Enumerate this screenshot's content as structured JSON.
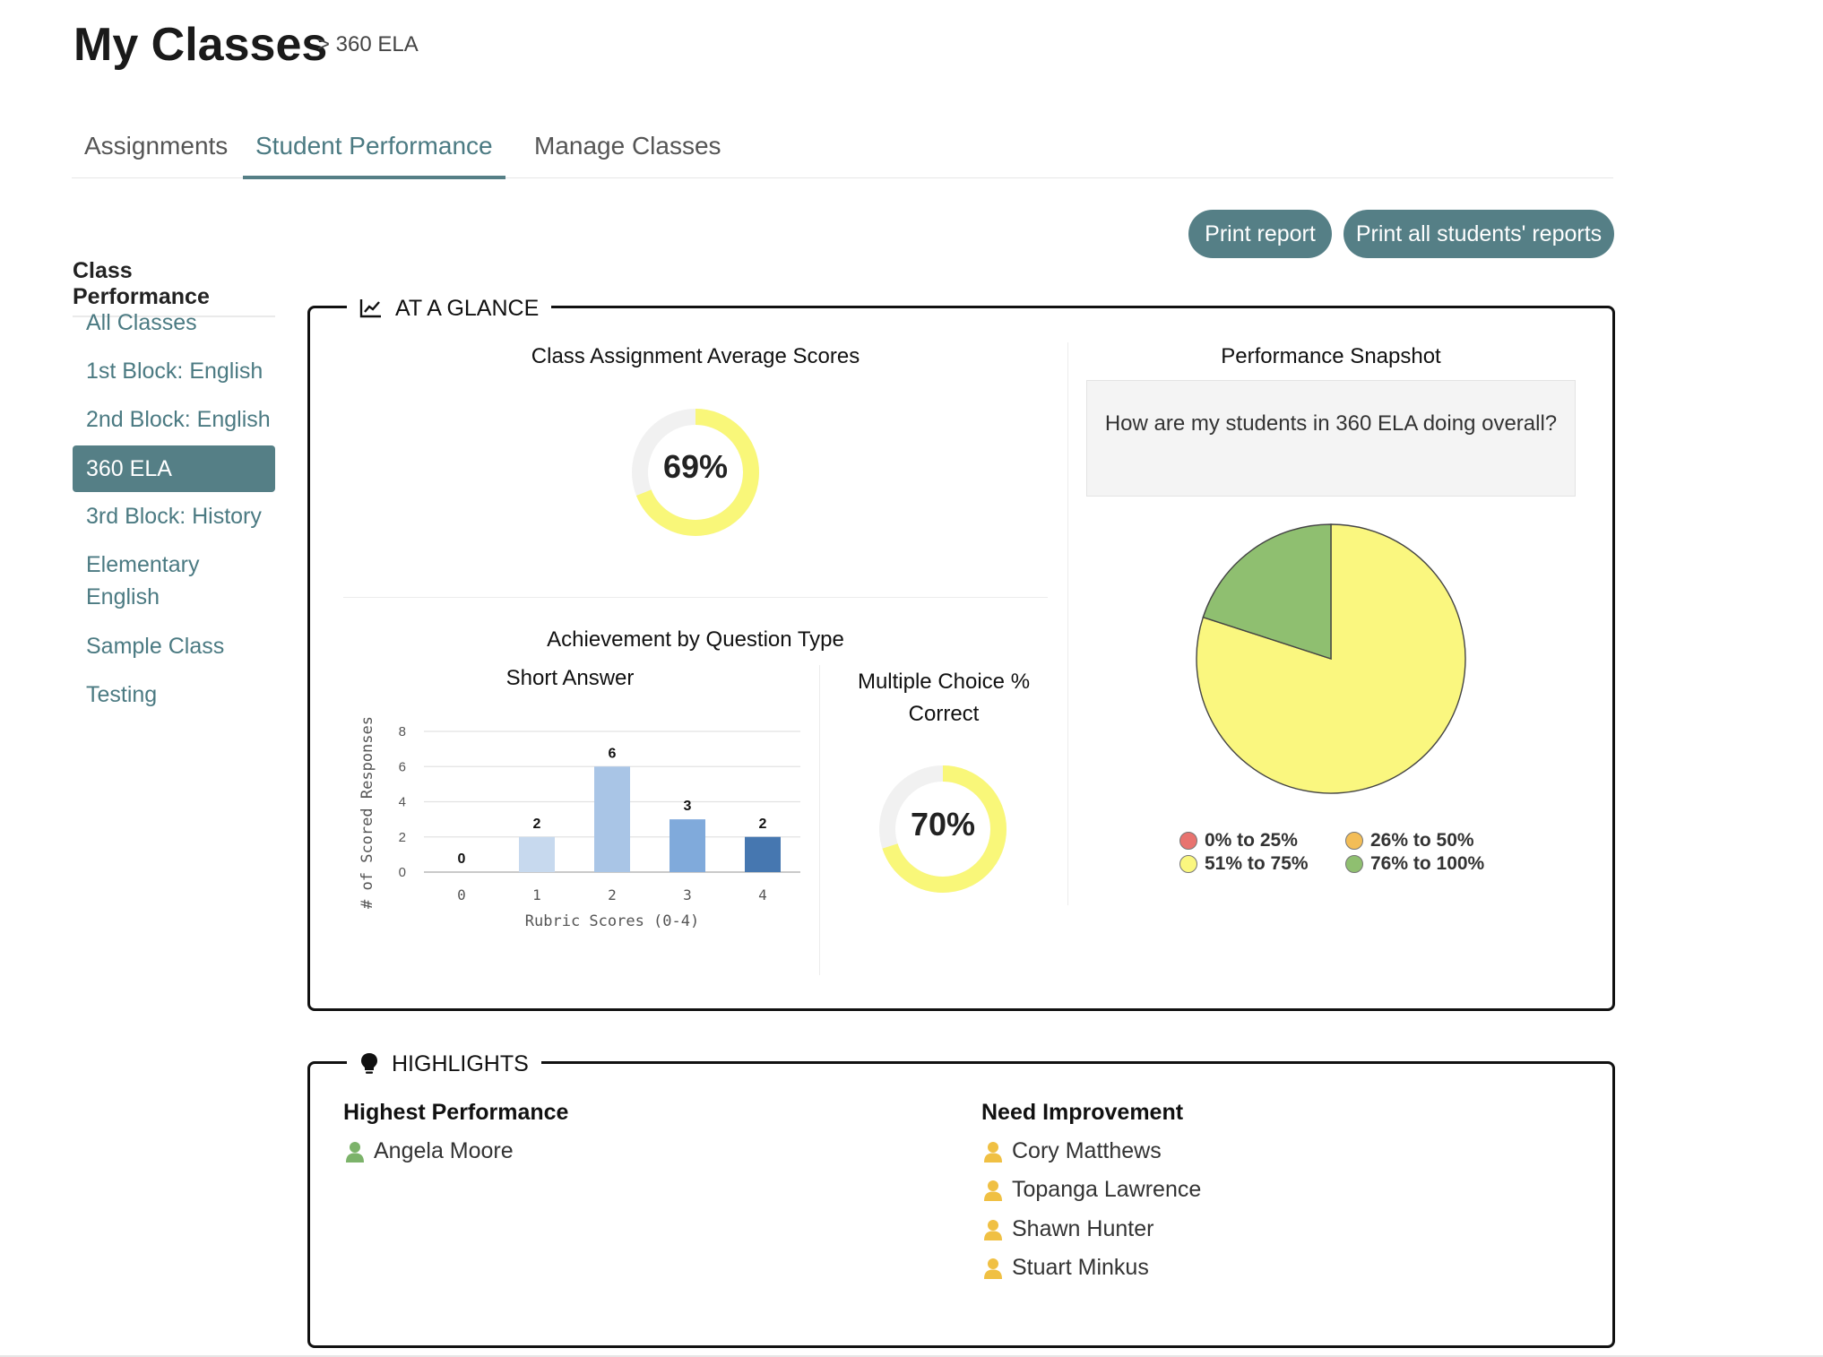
{
  "header": {
    "title": "My Classes",
    "breadcrumb": "> 360 ELA"
  },
  "tabs": [
    {
      "label": "Assignments"
    },
    {
      "label": "Student Performance"
    },
    {
      "label": "Manage Classes"
    }
  ],
  "actions": {
    "print_report": "Print report",
    "print_all": "Print all students' reports"
  },
  "sidebar": {
    "heading": "Class Performance",
    "items": [
      {
        "label": "All Classes"
      },
      {
        "label": "1st Block: English"
      },
      {
        "label": "2nd Block: English"
      },
      {
        "label": "360 ELA"
      },
      {
        "label": "3rd Block: History"
      },
      {
        "label": "Elementary English"
      },
      {
        "label": "Sample Class"
      },
      {
        "label": "Testing"
      }
    ]
  },
  "glance": {
    "title": "AT A GLANCE",
    "avg_title": "Class Assignment Average Scores",
    "avg_value": "69%",
    "avg_fraction": 0.69,
    "achievement_title": "Achievement by Question Type",
    "short_answer_title": "Short Answer",
    "mc_title_line1": "Multiple Choice %",
    "mc_title_line2": "Correct",
    "mc_value": "70%",
    "mc_fraction": 0.7,
    "snapshot_title": "Performance Snapshot",
    "snapshot_question": "How are my students in 360 ELA doing overall?"
  },
  "chart_data": [
    {
      "type": "bar",
      "title": "Short Answer",
      "categories": [
        "0",
        "1",
        "2",
        "3",
        "4"
      ],
      "values": [
        0,
        2,
        6,
        3,
        2
      ],
      "xlabel": "Rubric Scores (0-4)",
      "ylabel": "# of Scored Responses",
      "ylim": [
        0,
        8
      ],
      "yticks": [
        "0",
        "2",
        "4",
        "6",
        "8"
      ],
      "colors": [
        "#c7d9ee",
        "#c7d9ee",
        "#a9c5e6",
        "#80aadb",
        "#4677b0"
      ],
      "grid": true
    },
    {
      "type": "pie",
      "title": "Performance Snapshot",
      "labels": [
        "0% to 25%",
        "26% to 50%",
        "51% to 75%",
        "76% to 100%"
      ],
      "values": [
        0,
        0,
        80,
        20
      ],
      "colors": [
        "#e8736f",
        "#f3bd57",
        "#faf77f",
        "#8fbf70"
      ],
      "legend": "bottom"
    }
  ],
  "highlights": {
    "title": "HIGHLIGHTS",
    "highest_heading": "Highest Performance",
    "highest": [
      "Angela Moore"
    ],
    "improve_heading": "Need Improvement",
    "improve": [
      "Cory Matthews",
      "Topanga Lawrence",
      "Shawn Hunter",
      "Stuart Minkus"
    ]
  },
  "colors": {
    "accent": "#557f86",
    "donut_fill": "#f9f779",
    "donut_track": "#f1f1f1",
    "user_high": "#7cb36a",
    "user_low": "#f0c043"
  },
  "icons": {
    "glance": "line-chart-icon",
    "highlights": "lightbulb-icon",
    "student": "user-icon"
  }
}
